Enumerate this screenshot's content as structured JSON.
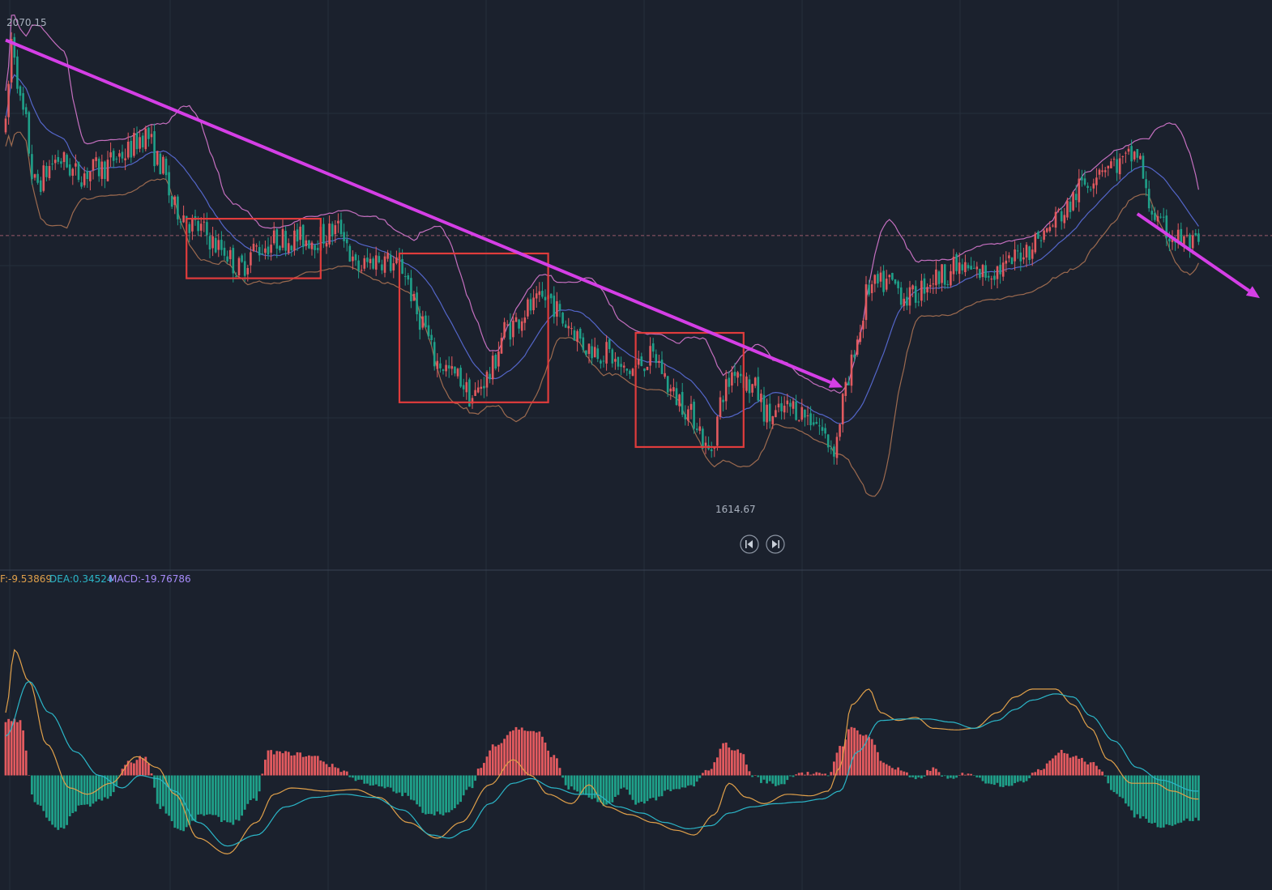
{
  "colors": {
    "background": "#1b212d",
    "grid": "#262e3c",
    "up": "#e25a5f",
    "down": "#1fa089",
    "upper_band": "#c46fbf",
    "middle_band": "#5466c9",
    "lower_band": "#9c6a4f",
    "dif_line": "#e0a04a",
    "dea_line": "#2bb6c8",
    "trendline": "#d53fe6",
    "box": "#e03c3c",
    "price_line": "#9a5a6a",
    "label": "#aab2bf"
  },
  "chart_data": [
    {
      "type": "candlestick",
      "panel": "price",
      "overlays": [
        "bollinger-upper",
        "bollinger-middle",
        "bollinger-lower"
      ],
      "annotations": {
        "high_label": "2070.15",
        "low_label": "1614.67",
        "downtrend_line": {
          "from": [
            0,
            2070
          ],
          "to": [
            287,
            1720
          ]
        },
        "second_downtrend_line": {
          "from": [
            388,
            1895
          ],
          "to": [
            430,
            1810
          ]
        },
        "consolidation_boxes": [
          {
            "x0": 62,
            "x1": 108,
            "y0": 1890,
            "y1": 1830
          },
          {
            "x0": 135,
            "x1": 186,
            "y0": 1855,
            "y1": 1705
          },
          {
            "x0": 216,
            "x1": 253,
            "y0": 1775,
            "y1": 1660
          }
        ]
      },
      "ylim": [
        1580,
        2090
      ],
      "current_price_level": 1873,
      "bars": 410,
      "anchors": [
        [
          0,
          1980
        ],
        [
          2,
          2070
        ],
        [
          6,
          1995
        ],
        [
          10,
          1925
        ],
        [
          18,
          1950
        ],
        [
          25,
          1935
        ],
        [
          32,
          1940
        ],
        [
          40,
          1955
        ],
        [
          48,
          1975
        ],
        [
          53,
          1945
        ],
        [
          58,
          1900
        ],
        [
          66,
          1880
        ],
        [
          74,
          1860
        ],
        [
          80,
          1840
        ],
        [
          86,
          1860
        ],
        [
          95,
          1870
        ],
        [
          106,
          1870
        ],
        [
          115,
          1880
        ],
        [
          120,
          1840
        ],
        [
          128,
          1850
        ],
        [
          136,
          1840
        ],
        [
          142,
          1790
        ],
        [
          148,
          1745
        ],
        [
          155,
          1730
        ],
        [
          160,
          1710
        ],
        [
          165,
          1730
        ],
        [
          172,
          1780
        ],
        [
          180,
          1800
        ],
        [
          186,
          1810
        ],
        [
          192,
          1785
        ],
        [
          200,
          1760
        ],
        [
          206,
          1755
        ],
        [
          212,
          1735
        ],
        [
          222,
          1750
        ],
        [
          230,
          1710
        ],
        [
          236,
          1690
        ],
        [
          241,
          1655
        ],
        [
          247,
          1720
        ],
        [
          250,
          1740
        ],
        [
          256,
          1720
        ],
        [
          262,
          1690
        ],
        [
          270,
          1700
        ],
        [
          276,
          1690
        ],
        [
          284,
          1660
        ],
        [
          288,
          1715
        ],
        [
          292,
          1770
        ],
        [
          296,
          1820
        ],
        [
          303,
          1825
        ],
        [
          310,
          1810
        ],
        [
          318,
          1830
        ],
        [
          326,
          1840
        ],
        [
          334,
          1835
        ],
        [
          342,
          1840
        ],
        [
          350,
          1860
        ],
        [
          356,
          1875
        ],
        [
          362,
          1895
        ],
        [
          370,
          1925
        ],
        [
          376,
          1945
        ],
        [
          382,
          1945
        ],
        [
          388,
          1955
        ],
        [
          392,
          1905
        ],
        [
          396,
          1880
        ],
        [
          402,
          1870
        ],
        [
          408,
          1862
        ]
      ]
    },
    {
      "type": "bar",
      "panel": "macd",
      "legend": {
        "dif": "F:-9.53869",
        "dea": "DEA:0.34524",
        "macd": "MACD:-19.76786"
      },
      "ylim": [
        -72,
        120
      ],
      "bars": 410,
      "histogram_anchors": [
        [
          0,
          35
        ],
        [
          5,
          35
        ],
        [
          10,
          -18
        ],
        [
          18,
          -35
        ],
        [
          26,
          -20
        ],
        [
          35,
          -15
        ],
        [
          42,
          8
        ],
        [
          48,
          12
        ],
        [
          53,
          -20
        ],
        [
          60,
          -35
        ],
        [
          68,
          -25
        ],
        [
          78,
          -30
        ],
        [
          86,
          -15
        ],
        [
          90,
          15
        ],
        [
          98,
          14
        ],
        [
          106,
          12
        ],
        [
          112,
          6
        ],
        [
          116,
          3
        ],
        [
          120,
          -3
        ],
        [
          130,
          -8
        ],
        [
          136,
          -12
        ],
        [
          145,
          -24
        ],
        [
          152,
          -24
        ],
        [
          160,
          -8
        ],
        [
          162,
          4
        ],
        [
          168,
          20
        ],
        [
          175,
          30
        ],
        [
          182,
          28
        ],
        [
          188,
          12
        ],
        [
          193,
          -8
        ],
        [
          200,
          -14
        ],
        [
          206,
          -20
        ],
        [
          212,
          -8
        ],
        [
          216,
          -18
        ],
        [
          222,
          -15
        ],
        [
          228,
          -10
        ],
        [
          235,
          -7
        ],
        [
          242,
          5
        ],
        [
          246,
          20
        ],
        [
          252,
          15
        ],
        [
          256,
          0
        ],
        [
          260,
          -4
        ],
        [
          265,
          -6
        ],
        [
          272,
          2
        ],
        [
          276,
          1
        ],
        [
          282,
          0
        ],
        [
          286,
          18
        ],
        [
          290,
          30
        ],
        [
          296,
          25
        ],
        [
          301,
          8
        ],
        [
          306,
          4
        ],
        [
          312,
          -3
        ],
        [
          318,
          4
        ],
        [
          324,
          -3
        ],
        [
          330,
          2
        ],
        [
          336,
          -4
        ],
        [
          342,
          -6
        ],
        [
          348,
          -5
        ],
        [
          354,
          4
        ],
        [
          362,
          15
        ],
        [
          366,
          12
        ],
        [
          372,
          8
        ],
        [
          376,
          2
        ],
        [
          380,
          -10
        ],
        [
          388,
          -26
        ],
        [
          396,
          -32
        ],
        [
          408,
          -28
        ]
      ],
      "dif_anchors": [
        [
          0,
          40
        ],
        [
          3,
          80
        ],
        [
          8,
          60
        ],
        [
          14,
          20
        ],
        [
          22,
          -8
        ],
        [
          28,
          -12
        ],
        [
          36,
          -5
        ],
        [
          45,
          12
        ],
        [
          52,
          5
        ],
        [
          58,
          -12
        ],
        [
          66,
          -40
        ],
        [
          76,
          -50
        ],
        [
          86,
          -30
        ],
        [
          92,
          -12
        ],
        [
          98,
          -8
        ],
        [
          110,
          -10
        ],
        [
          120,
          -9
        ],
        [
          128,
          -14
        ],
        [
          138,
          -30
        ],
        [
          148,
          -40
        ],
        [
          156,
          -30
        ],
        [
          166,
          -6
        ],
        [
          174,
          10
        ],
        [
          180,
          0
        ],
        [
          186,
          -12
        ],
        [
          194,
          -18
        ],
        [
          200,
          -6
        ],
        [
          206,
          -20
        ],
        [
          214,
          -25
        ],
        [
          222,
          -30
        ],
        [
          230,
          -35
        ],
        [
          236,
          -38
        ],
        [
          243,
          -25
        ],
        [
          248,
          -5
        ],
        [
          254,
          -14
        ],
        [
          260,
          -18
        ],
        [
          268,
          -12
        ],
        [
          276,
          -13
        ],
        [
          282,
          -10
        ],
        [
          286,
          5
        ],
        [
          290,
          45
        ],
        [
          296,
          55
        ],
        [
          300,
          40
        ],
        [
          306,
          35
        ],
        [
          312,
          37
        ],
        [
          318,
          30
        ],
        [
          326,
          29
        ],
        [
          332,
          30
        ],
        [
          340,
          40
        ],
        [
          346,
          50
        ],
        [
          352,
          55
        ],
        [
          360,
          55
        ],
        [
          366,
          45
        ],
        [
          372,
          30
        ],
        [
          378,
          10
        ],
        [
          386,
          -5
        ],
        [
          394,
          -5
        ],
        [
          400,
          -10
        ],
        [
          408,
          -15
        ]
      ],
      "dea_anchors": [
        [
          0,
          25
        ],
        [
          8,
          60
        ],
        [
          15,
          40
        ],
        [
          24,
          15
        ],
        [
          32,
          0
        ],
        [
          40,
          -8
        ],
        [
          46,
          0
        ],
        [
          52,
          -2
        ],
        [
          58,
          -10
        ],
        [
          66,
          -30
        ],
        [
          76,
          -45
        ],
        [
          86,
          -38
        ],
        [
          96,
          -20
        ],
        [
          106,
          -14
        ],
        [
          116,
          -12
        ],
        [
          126,
          -14
        ],
        [
          136,
          -22
        ],
        [
          146,
          -38
        ],
        [
          152,
          -40
        ],
        [
          158,
          -35
        ],
        [
          166,
          -18
        ],
        [
          174,
          -5
        ],
        [
          180,
          -2
        ],
        [
          188,
          -8
        ],
        [
          196,
          -12
        ],
        [
          202,
          -12
        ],
        [
          210,
          -20
        ],
        [
          218,
          -24
        ],
        [
          226,
          -30
        ],
        [
          234,
          -34
        ],
        [
          242,
          -32
        ],
        [
          248,
          -24
        ],
        [
          256,
          -20
        ],
        [
          264,
          -18
        ],
        [
          272,
          -17
        ],
        [
          280,
          -15
        ],
        [
          286,
          -10
        ],
        [
          292,
          15
        ],
        [
          300,
          35
        ],
        [
          308,
          36
        ],
        [
          316,
          36
        ],
        [
          324,
          34
        ],
        [
          332,
          30
        ],
        [
          340,
          35
        ],
        [
          346,
          42
        ],
        [
          352,
          48
        ],
        [
          360,
          52
        ],
        [
          366,
          50
        ],
        [
          372,
          38
        ],
        [
          380,
          22
        ],
        [
          388,
          5
        ],
        [
          396,
          -3
        ],
        [
          408,
          -10
        ]
      ]
    }
  ],
  "labels": {
    "high": "2070.15",
    "low": "1614.67",
    "dif": "F:-9.53869",
    "dea": "DEA:0.34524",
    "macd": "MACD:-19.76786"
  },
  "controls": {
    "prev_icon": "skip-back-icon",
    "next_icon": "skip-forward-icon"
  }
}
